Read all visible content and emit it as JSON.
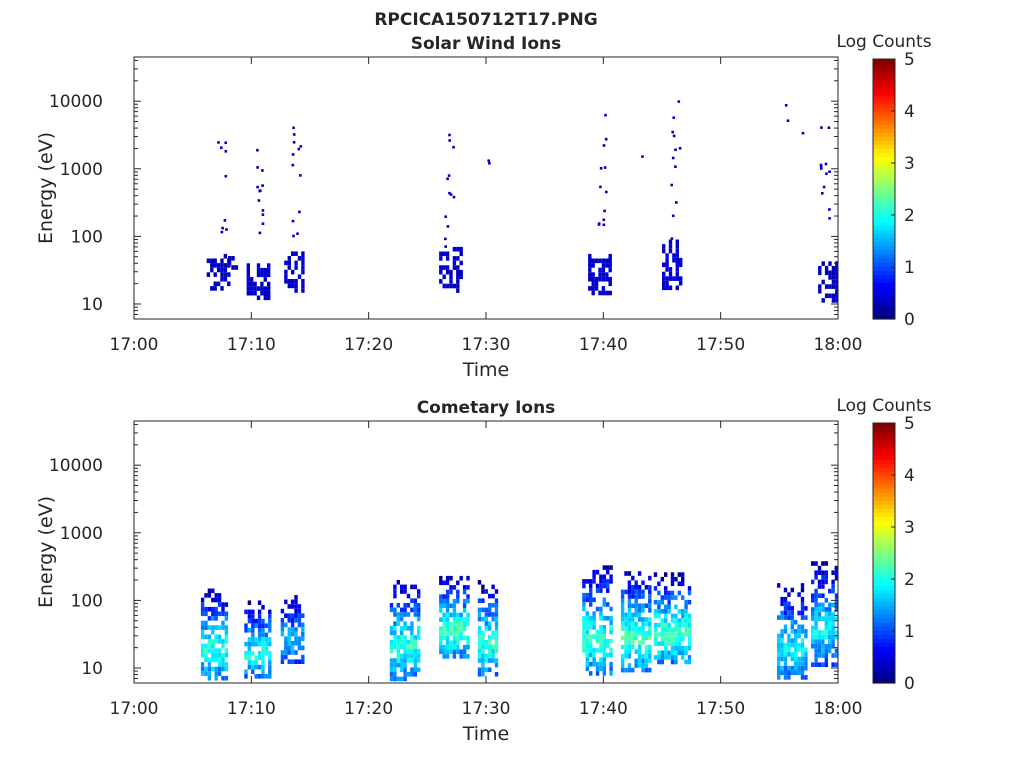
{
  "figure": {
    "title_line1": "RPCICA150712T17.PNG"
  },
  "colorbar": {
    "label": "Log Counts",
    "ticks": [
      "0",
      "1",
      "2",
      "3",
      "4",
      "5"
    ],
    "range": [
      0,
      5
    ],
    "colormap": "jet"
  },
  "chart_data": [
    {
      "type": "heatmap",
      "title": "Solar Wind Ions",
      "xlabel": "Time",
      "ylabel": "Energy (eV)",
      "x_ticks": [
        "17:00",
        "17:10",
        "17:20",
        "17:30",
        "17:40",
        "17:50",
        "18:00"
      ],
      "y_ticks": [
        "10",
        "100",
        "1000",
        "10000"
      ],
      "x_range_minutes": [
        0,
        60
      ],
      "y_range_eV": [
        6,
        45000
      ],
      "y_scale": "log",
      "value_label": "Log Counts",
      "value_range": [
        0,
        5
      ],
      "clusters": [
        {
          "t": [
            6.2,
            8.0
          ],
          "e": [
            17,
            55
          ],
          "v": 0.25
        },
        {
          "t": [
            8.0,
            8.6
          ],
          "e": [
            35,
            60
          ],
          "v": 0.2
        },
        {
          "t": [
            9.6,
            11.5
          ],
          "e": [
            12,
            40
          ],
          "v": 0.3
        },
        {
          "t": [
            12.8,
            14.5
          ],
          "e": [
            17,
            60
          ],
          "v": 0.3
        },
        {
          "t": [
            26.0,
            27.8
          ],
          "e": [
            17,
            70
          ],
          "v": 0.3
        },
        {
          "t": [
            38.7,
            40.6
          ],
          "e": [
            14,
            55
          ],
          "v": 0.3
        },
        {
          "t": [
            45.0,
            46.5
          ],
          "e": [
            18,
            90
          ],
          "v": 0.35
        },
        {
          "t": [
            58.3,
            59.9
          ],
          "e": [
            12,
            50
          ],
          "v": 0.25
        }
      ],
      "sparse_points": [
        {
          "t": 7.4,
          "e": [
            120,
            4500
          ],
          "n": 9
        },
        {
          "t": 10.8,
          "e": [
            90,
            3000
          ],
          "n": 12
        },
        {
          "t": 13.8,
          "e": [
            100,
            6500
          ],
          "n": 12
        },
        {
          "t": 26.8,
          "e": [
            70,
            5200
          ],
          "n": 12
        },
        {
          "t": 29.8,
          "e": [
            800,
            1800
          ],
          "n": 2
        },
        {
          "t": 39.8,
          "e": [
            60,
            8000
          ],
          "n": 12
        },
        {
          "t": 43.5,
          "e": [
            1500,
            1800
          ],
          "n": 1
        },
        {
          "t": 46.1,
          "e": [
            90,
            10500
          ],
          "n": 12
        },
        {
          "t": 55.4,
          "e": [
            900,
            10000
          ],
          "n": 2
        },
        {
          "t": 56.9,
          "e": [
            3500,
            3800
          ],
          "n": 1
        },
        {
          "t": 58.8,
          "e": [
            80,
            5500
          ],
          "n": 12
        }
      ]
    },
    {
      "type": "heatmap",
      "title": "Cometary Ions",
      "xlabel": "Time",
      "ylabel": "Energy (eV)",
      "x_ticks": [
        "17:00",
        "17:10",
        "17:20",
        "17:30",
        "17:40",
        "17:50",
        "18:00"
      ],
      "y_ticks": [
        "10",
        "100",
        "1000",
        "10000"
      ],
      "x_range_minutes": [
        0,
        60
      ],
      "y_range_eV": [
        6,
        45000
      ],
      "y_scale": "log",
      "value_label": "Log Counts",
      "value_range": [
        0,
        5
      ],
      "clusters": [
        {
          "t": [
            5.7,
            8.0
          ],
          "e": [
            7,
            150
          ],
          "v": 1.7
        },
        {
          "t": [
            9.4,
            11.5
          ],
          "e": [
            7,
            100
          ],
          "v": 1.6
        },
        {
          "t": [
            12.5,
            14.4
          ],
          "e": [
            12,
            120
          ],
          "v": 1.3
        },
        {
          "t": [
            21.8,
            24.2
          ],
          "e": [
            7,
            200
          ],
          "v": 1.7
        },
        {
          "t": [
            26.0,
            28.4
          ],
          "e": [
            15,
            230
          ],
          "v": 1.8
        },
        {
          "t": [
            29.3,
            31.0
          ],
          "e": [
            8,
            200
          ],
          "v": 1.7
        },
        {
          "t": [
            38.2,
            40.8
          ],
          "e": [
            8,
            330
          ],
          "v": 1.7
        },
        {
          "t": [
            41.5,
            44.0
          ],
          "e": [
            9,
            270
          ],
          "v": 1.8
        },
        {
          "t": [
            44.3,
            47.3
          ],
          "e": [
            12,
            260
          ],
          "v": 1.8
        },
        {
          "t": [
            54.8,
            57.4
          ],
          "e": [
            7,
            180
          ],
          "v": 1.5
        },
        {
          "t": [
            57.7,
            59.9
          ],
          "e": [
            12,
            380
          ],
          "v": 1.5
        }
      ]
    }
  ]
}
